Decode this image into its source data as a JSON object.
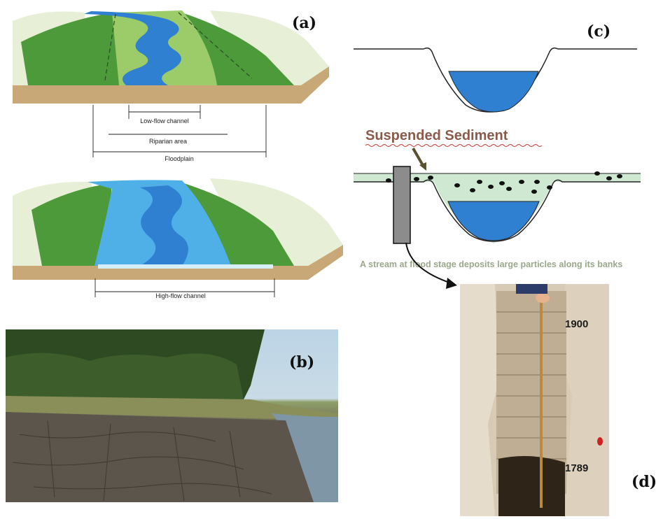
{
  "panels": {
    "a": {
      "letter": "(a)",
      "labels": {
        "low_flow": "Low-flow channel",
        "riparian": "Riparian area",
        "floodplain": "Floodplain",
        "high_flow": "High-flow channel"
      }
    },
    "b": {
      "letter": "(b)"
    },
    "c": {
      "letter": "(c)",
      "suspended_title": "Suspended Sediment",
      "caption": "A stream at flood stage deposits large particles along its banks"
    },
    "d": {
      "letter": "(d)",
      "years": {
        "top": "1900",
        "bottom": "1789"
      }
    }
  },
  "colors": {
    "water": "#2f80d0",
    "water_light": "#4fb0e8",
    "grass": "#4c9a3a",
    "grass_light": "#9ccc6a",
    "terrain_edge": "#c9a877",
    "flood_fill": "#cfe8d2",
    "sediment_title": "#8a5a4a",
    "caption": "#9aa88c"
  }
}
